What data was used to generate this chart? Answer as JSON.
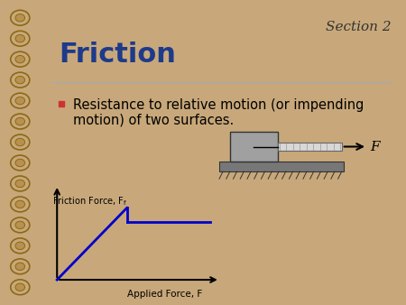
{
  "bg_color": "#c8a87a",
  "slide_bg": "#ffffff",
  "title": "Friction",
  "title_color": "#1e3a8a",
  "section_text": "Section 2",
  "section_color": "#333333",
  "bullet_text_line1": "Resistance to relative motion (or impending",
  "bullet_text_line2": "motion) of two surfaces.",
  "bullet_color": "#cc3333",
  "text_color": "#000000",
  "graph_line_color": "#0000cc",
  "axis_color": "#000000",
  "xlabel": "Applied Force, F",
  "ylabel": "Friction Force, F",
  "ylabel_sub": "f",
  "force_label": "F",
  "box_color": "#a0a0a0",
  "surface_hatch_color": "#555555",
  "line_color": "#aaaaaa",
  "spiral_bg": "#c8a87a",
  "spiral_edge": "#8B6914"
}
